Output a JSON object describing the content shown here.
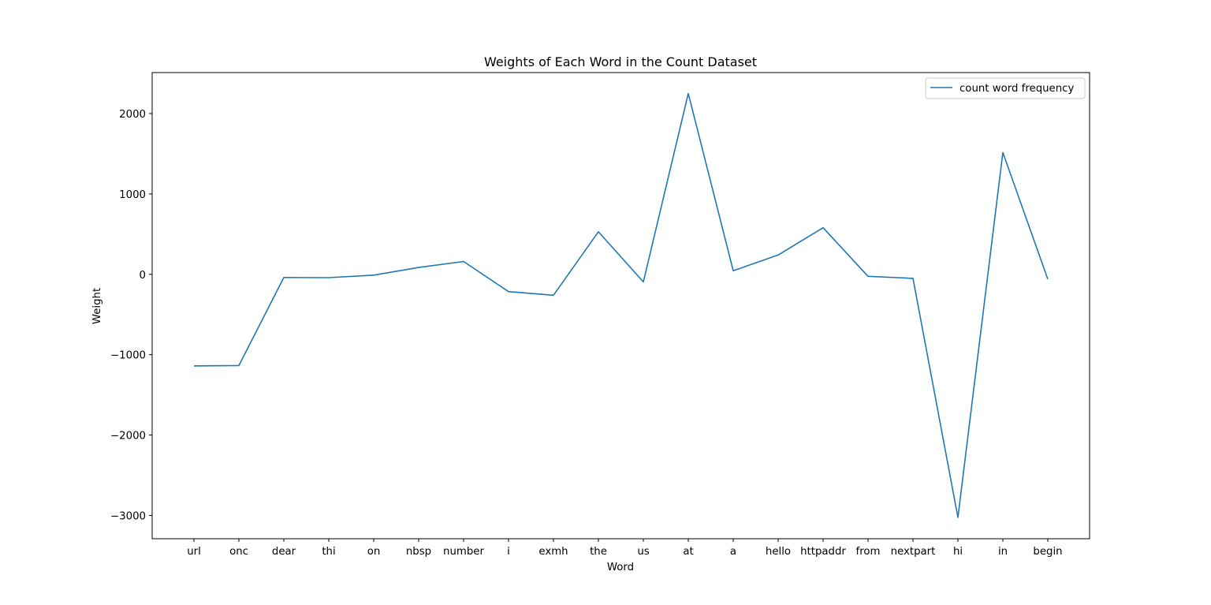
{
  "chart_data": {
    "type": "line",
    "title": "Weights of Each Word in the Count Dataset",
    "xlabel": "Word",
    "ylabel": "Weight",
    "categories": [
      "url",
      "onc",
      "dear",
      "thi",
      "on",
      "nbsp",
      "number",
      "i",
      "exmh",
      "the",
      "us",
      "at",
      "a",
      "hello",
      "httpaddr",
      "from",
      "nextpart",
      "hi",
      "in",
      "begin"
    ],
    "series": [
      {
        "name": "count word frequency",
        "color": "#1f77b4",
        "values": [
          -1140,
          -1135,
          -40,
          -42,
          -10,
          85,
          160,
          -215,
          -260,
          530,
          -95,
          2250,
          45,
          240,
          580,
          -25,
          -50,
          -3025,
          1515,
          -60
        ]
      }
    ],
    "yticks": [
      {
        "value": 2000,
        "label": "2000"
      },
      {
        "value": 1000,
        "label": "1000"
      },
      {
        "value": 0,
        "label": "0"
      },
      {
        "value": -1000,
        "label": "−1000"
      },
      {
        "value": -2000,
        "label": "−2000"
      },
      {
        "value": -3000,
        "label": "−3000"
      }
    ],
    "ylim": [
      -3290,
      2510
    ],
    "grid": false,
    "legend": "top-right"
  }
}
